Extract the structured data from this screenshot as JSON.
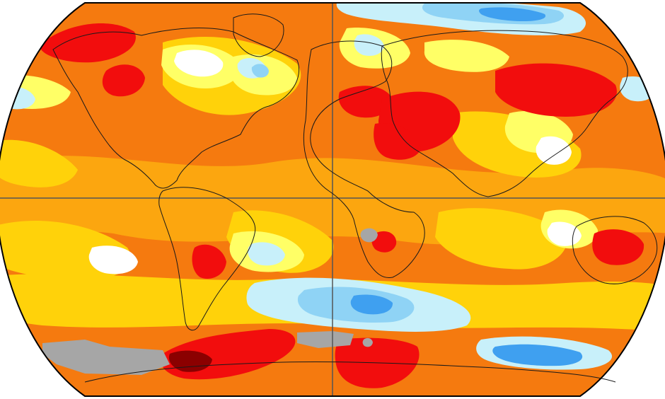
{
  "map": {
    "projection": "robinson",
    "subject": "surface-temperature-anomaly",
    "legend": null,
    "palette": {
      "background": "#ffffff",
      "frame": "#000000",
      "missing_data": "#a6a6a6",
      "dark_red": "#8b0000",
      "red": "#f20d0d",
      "orange": "#f57a0f",
      "light_orange": "#fca60f",
      "yellow": "#ffd20a",
      "pale_yellow": "#ffff66",
      "white": "#ffffff",
      "pale_blue": "#c8f0fa",
      "light_blue": "#8fd3f5",
      "blue": "#3fa0f0",
      "coastline": "#1a1a1a",
      "gridline": "#555555"
    }
  }
}
